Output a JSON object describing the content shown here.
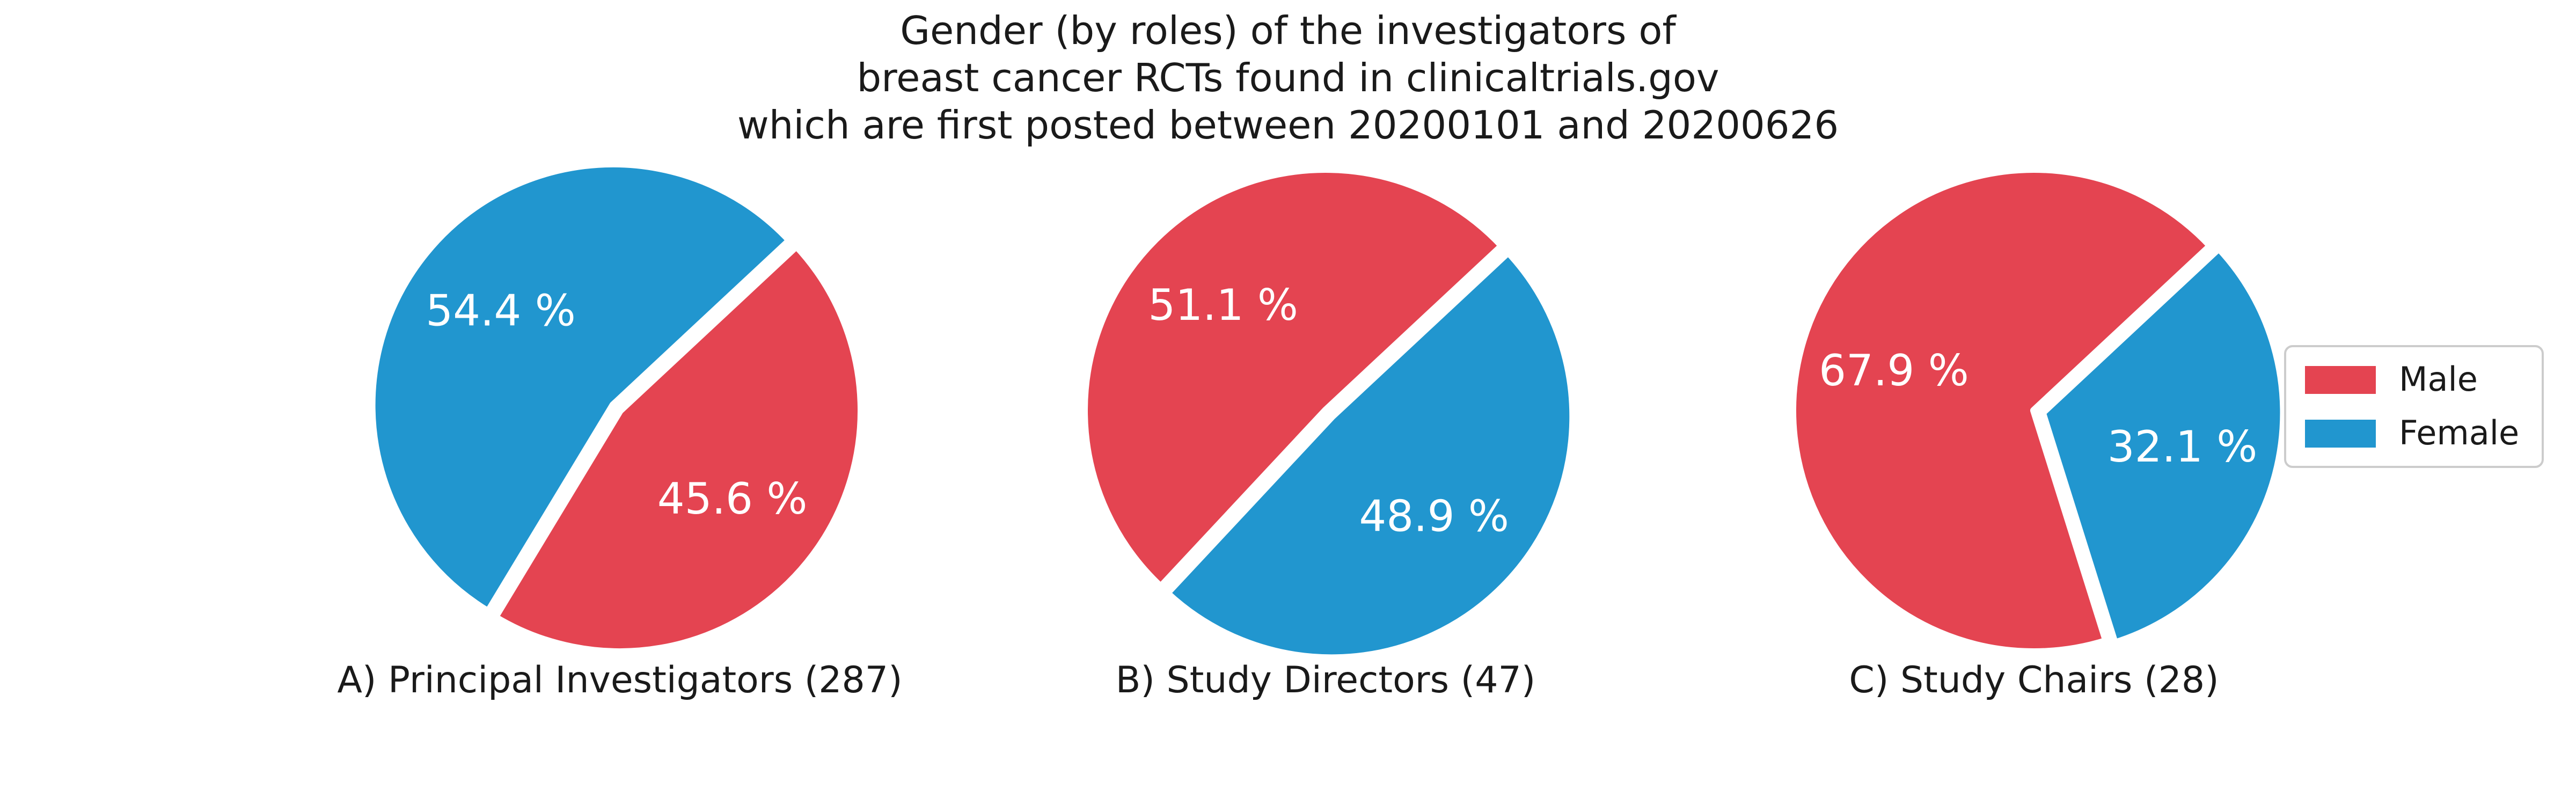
{
  "chart_data": {
    "type": "pie",
    "title": [
      "Gender (by roles) of the investigators of",
      "breast cancer RCTs found in clinicaltrials.gov",
      "which are first posted between 20200101 and 20200626"
    ],
    "categories": [
      "Male",
      "Female"
    ],
    "colors": {
      "Male": "#e44451",
      "Female": "#2196cf"
    },
    "legend": {
      "placement": "right",
      "entries": [
        "Male",
        "Female"
      ]
    },
    "pies": [
      {
        "caption": "A) Principal Investigators (287)",
        "values": {
          "Male": 45.6,
          "Female": 54.4
        },
        "labels": {
          "Male": "45.6 %",
          "Female": "54.4 %"
        }
      },
      {
        "caption": "B) Study Directors (47)",
        "values": {
          "Male": 51.1,
          "Female": 48.9
        },
        "labels": {
          "Male": "51.1 %",
          "Female": "48.9 %"
        }
      },
      {
        "caption": "C) Study Chairs (28)",
        "values": {
          "Male": 67.9,
          "Female": 32.1
        },
        "labels": {
          "Male": "67.9 %",
          "Female": "32.1 %"
        }
      }
    ]
  }
}
